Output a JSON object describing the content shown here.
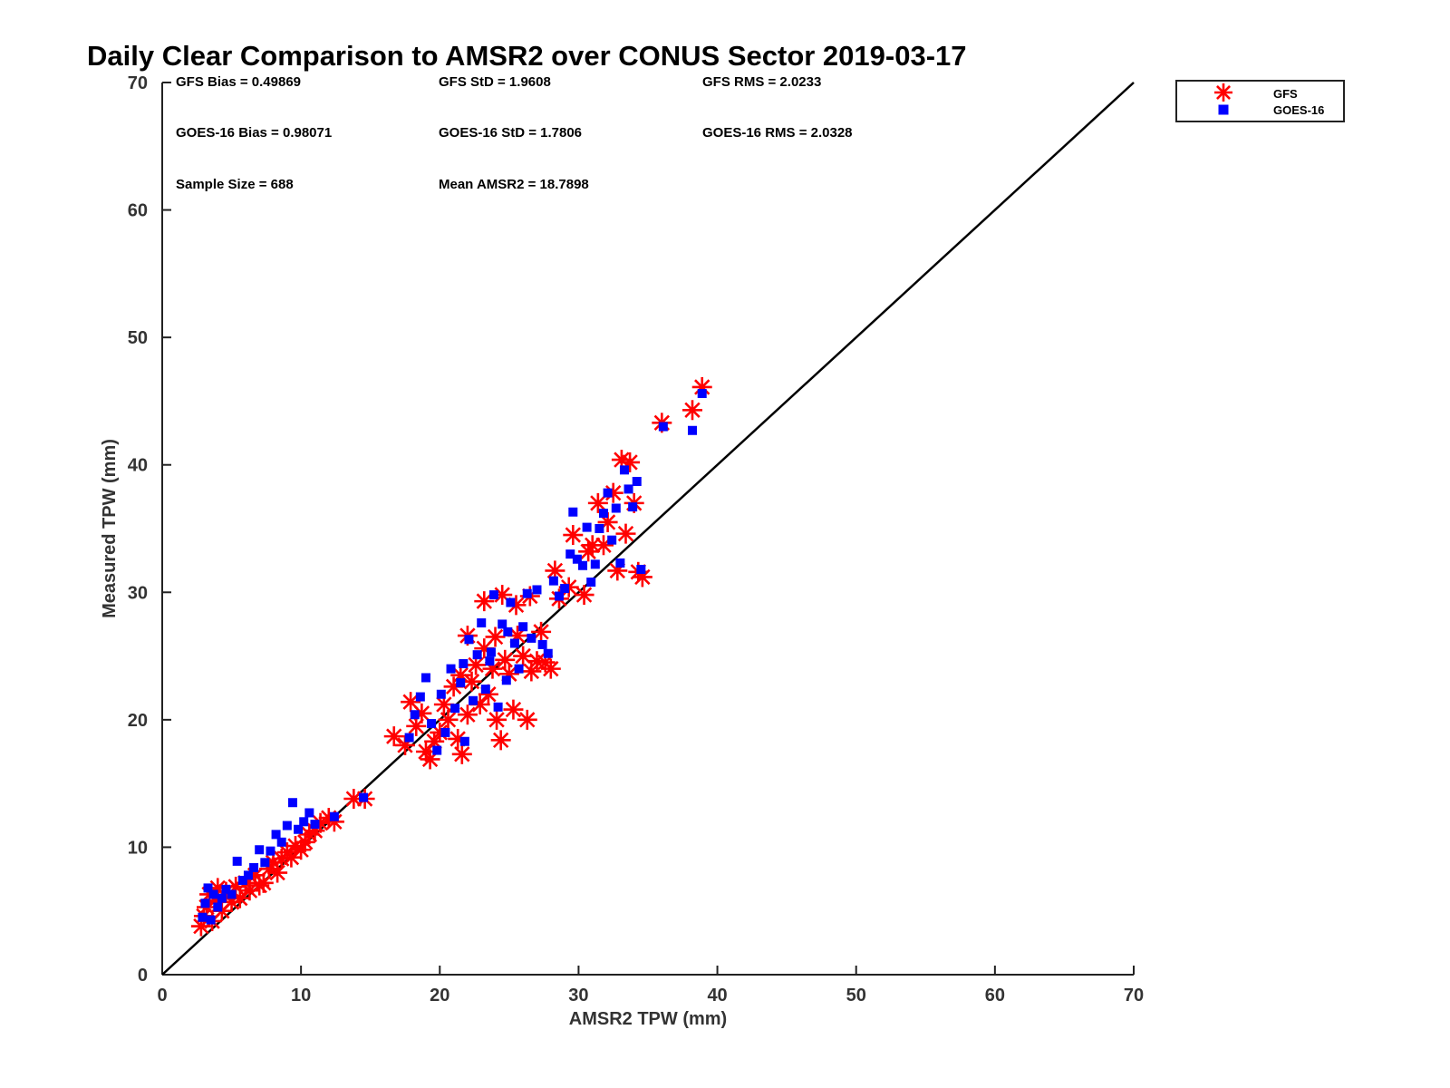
{
  "chart_data": {
    "type": "scatter",
    "title": "Daily Clear Comparison to AMSR2 over CONUS Sector 2019-03-17",
    "xlabel": "AMSR2 TPW (mm)",
    "ylabel": "Measured TPW (mm)",
    "xlim": [
      0,
      70
    ],
    "ylim": [
      0,
      70
    ],
    "x_ticks": [
      "0",
      "10",
      "20",
      "30",
      "40",
      "50",
      "60",
      "70"
    ],
    "y_ticks": [
      "0",
      "10",
      "20",
      "30",
      "40",
      "50",
      "60",
      "70"
    ],
    "grid": false,
    "legend_position": "outside-top-right",
    "reference_line": "y = x",
    "stats": [
      [
        "GFS Bias = 0.49869",
        "GFS StD = 1.9608",
        "GFS RMS = 2.0233"
      ],
      [
        "GOES-16 Bias = 0.98071",
        "GOES-16 StD = 1.7806",
        "GOES-16 RMS = 2.0328"
      ],
      [
        "Sample Size = 688",
        "Mean AMSR2 = 18.7898"
      ]
    ],
    "series": [
      {
        "name": "GFS",
        "marker": "asterisk",
        "color": "#ff0000",
        "points": [
          [
            2.8,
            3.8
          ],
          [
            3.0,
            4.6
          ],
          [
            3.2,
            5.3
          ],
          [
            3.4,
            6.3
          ],
          [
            3.6,
            4.2
          ],
          [
            3.8,
            5.8
          ],
          [
            4.0,
            6.8
          ],
          [
            4.3,
            5.0
          ],
          [
            4.6,
            6.5
          ],
          [
            5.0,
            5.7
          ],
          [
            5.3,
            6.9
          ],
          [
            5.6,
            6.0
          ],
          [
            6.0,
            7.2
          ],
          [
            6.3,
            6.6
          ],
          [
            6.7,
            7.8
          ],
          [
            7.0,
            7.0
          ],
          [
            7.3,
            7.2
          ],
          [
            7.7,
            8.3
          ],
          [
            8.0,
            8.8
          ],
          [
            8.3,
            8.0
          ],
          [
            8.6,
            9.1
          ],
          [
            9.0,
            9.6
          ],
          [
            9.3,
            9.2
          ],
          [
            9.6,
            10.1
          ],
          [
            10.0,
            9.8
          ],
          [
            10.3,
            10.4
          ],
          [
            10.6,
            11.0
          ],
          [
            11.0,
            11.3
          ],
          [
            11.4,
            11.9
          ],
          [
            12.0,
            12.3
          ],
          [
            12.4,
            12.0
          ],
          [
            13.8,
            13.8
          ],
          [
            14.6,
            13.8
          ],
          [
            16.7,
            18.7
          ],
          [
            17.5,
            18.0
          ],
          [
            17.9,
            21.4
          ],
          [
            18.3,
            19.5
          ],
          [
            18.7,
            20.5
          ],
          [
            19.0,
            17.5
          ],
          [
            19.3,
            16.9
          ],
          [
            19.6,
            18.3
          ],
          [
            20.0,
            19.0
          ],
          [
            20.3,
            21.2
          ],
          [
            20.6,
            20.0
          ],
          [
            21.0,
            22.6
          ],
          [
            21.3,
            18.5
          ],
          [
            21.6,
            17.3
          ],
          [
            22.0,
            20.4
          ],
          [
            22.3,
            23.0
          ],
          [
            22.6,
            24.3
          ],
          [
            22.9,
            21.2
          ],
          [
            23.2,
            25.6
          ],
          [
            23.5,
            22.0
          ],
          [
            23.8,
            24.0
          ],
          [
            24.1,
            20.0
          ],
          [
            24.4,
            18.4
          ],
          [
            24.7,
            24.7
          ],
          [
            25.0,
            23.6
          ],
          [
            25.3,
            20.8
          ],
          [
            25.6,
            26.6
          ],
          [
            26.0,
            25.0
          ],
          [
            26.3,
            20.0
          ],
          [
            26.6,
            23.8
          ],
          [
            27.0,
            24.6
          ],
          [
            27.3,
            26.9
          ],
          [
            27.6,
            24.5
          ],
          [
            28.0,
            24.0
          ],
          [
            28.3,
            31.7
          ],
          [
            28.6,
            29.5
          ],
          [
            23.2,
            29.3
          ],
          [
            24.5,
            29.8
          ],
          [
            25.5,
            29.0
          ],
          [
            26.5,
            29.7
          ],
          [
            29.3,
            30.4
          ],
          [
            29.6,
            34.5
          ],
          [
            30.4,
            29.8
          ],
          [
            30.7,
            33.2
          ],
          [
            31.0,
            33.7
          ],
          [
            31.4,
            37.0
          ],
          [
            31.8,
            33.7
          ],
          [
            32.1,
            35.5
          ],
          [
            32.5,
            37.8
          ],
          [
            32.8,
            31.7
          ],
          [
            33.1,
            40.4
          ],
          [
            33.4,
            34.6
          ],
          [
            33.7,
            40.2
          ],
          [
            34.0,
            37.0
          ],
          [
            34.3,
            31.6
          ],
          [
            34.6,
            31.2
          ],
          [
            36.0,
            43.3
          ],
          [
            38.2,
            44.3
          ],
          [
            38.9,
            46.1
          ],
          [
            22.0,
            26.6
          ],
          [
            24.0,
            26.5
          ],
          [
            21.5,
            23.5
          ]
        ]
      },
      {
        "name": "GOES-16",
        "marker": "square",
        "color": "#0000ff",
        "points": [
          [
            2.9,
            4.5
          ],
          [
            3.1,
            5.6
          ],
          [
            3.3,
            6.8
          ],
          [
            3.5,
            4.3
          ],
          [
            3.7,
            6.3
          ],
          [
            4.0,
            5.3
          ],
          [
            4.3,
            6.0
          ],
          [
            4.6,
            6.7
          ],
          [
            5.0,
            6.3
          ],
          [
            5.4,
            8.9
          ],
          [
            5.8,
            7.4
          ],
          [
            6.2,
            7.8
          ],
          [
            6.6,
            8.4
          ],
          [
            7.0,
            9.8
          ],
          [
            7.4,
            8.8
          ],
          [
            7.8,
            9.7
          ],
          [
            8.2,
            11.0
          ],
          [
            8.6,
            10.4
          ],
          [
            9.0,
            11.7
          ],
          [
            9.4,
            13.5
          ],
          [
            9.8,
            11.4
          ],
          [
            10.2,
            12.0
          ],
          [
            10.6,
            12.7
          ],
          [
            11.0,
            11.8
          ],
          [
            12.4,
            12.4
          ],
          [
            14.5,
            13.9
          ],
          [
            17.8,
            18.6
          ],
          [
            18.2,
            20.4
          ],
          [
            18.6,
            21.8
          ],
          [
            19.0,
            23.3
          ],
          [
            19.4,
            19.7
          ],
          [
            19.8,
            17.6
          ],
          [
            20.1,
            22.0
          ],
          [
            20.4,
            19.0
          ],
          [
            20.8,
            24.0
          ],
          [
            21.1,
            20.9
          ],
          [
            21.5,
            22.9
          ],
          [
            21.8,
            18.3
          ],
          [
            22.1,
            26.3
          ],
          [
            22.4,
            21.5
          ],
          [
            22.7,
            25.1
          ],
          [
            23.0,
            27.6
          ],
          [
            23.3,
            22.4
          ],
          [
            23.6,
            24.6
          ],
          [
            23.9,
            29.8
          ],
          [
            24.2,
            21.0
          ],
          [
            24.5,
            27.5
          ],
          [
            24.8,
            23.1
          ],
          [
            25.1,
            29.2
          ],
          [
            25.4,
            26.0
          ],
          [
            25.7,
            24.0
          ],
          [
            26.0,
            27.3
          ],
          [
            26.3,
            29.9
          ],
          [
            26.6,
            26.4
          ],
          [
            27.0,
            30.2
          ],
          [
            27.4,
            25.9
          ],
          [
            27.8,
            25.2
          ],
          [
            28.2,
            30.9
          ],
          [
            28.6,
            29.7
          ],
          [
            29.0,
            30.3
          ],
          [
            29.4,
            33.0
          ],
          [
            29.6,
            36.3
          ],
          [
            29.9,
            32.6
          ],
          [
            30.3,
            32.1
          ],
          [
            30.6,
            35.1
          ],
          [
            30.9,
            30.8
          ],
          [
            31.2,
            32.2
          ],
          [
            31.5,
            35.0
          ],
          [
            31.8,
            36.2
          ],
          [
            32.1,
            37.8
          ],
          [
            32.4,
            34.1
          ],
          [
            32.7,
            36.6
          ],
          [
            33.0,
            32.3
          ],
          [
            33.3,
            39.6
          ],
          [
            33.6,
            38.1
          ],
          [
            33.9,
            36.7
          ],
          [
            34.2,
            38.7
          ],
          [
            34.5,
            31.8
          ],
          [
            36.1,
            43.0
          ],
          [
            38.2,
            42.7
          ],
          [
            38.9,
            45.6
          ],
          [
            21.7,
            24.4
          ],
          [
            23.7,
            25.3
          ],
          [
            24.9,
            26.9
          ]
        ]
      }
    ]
  }
}
